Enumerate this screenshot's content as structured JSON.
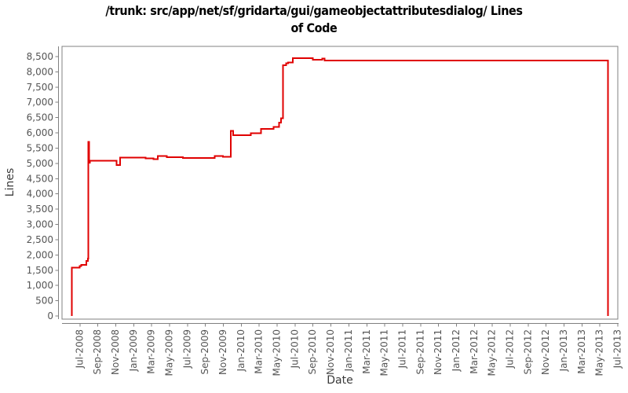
{
  "title": {
    "line1": "/trunk: src/app/net/sf/gridarta/gui/gameobjectattributesdialog/ Lines",
    "line2": "of Code"
  },
  "colors": {
    "background": "#ffffff",
    "line": "#e00000",
    "axis": "#808080",
    "tick_label": "#555555",
    "axis_title": "#3a3a3a",
    "title": "#000000"
  },
  "chart_data": {
    "type": "line",
    "step_interpolation": "step-after",
    "title": "/trunk: src/app/net/sf/gridarta/gui/gameobjectattributesdialog/ Lines of Code",
    "xlabel": "Date",
    "ylabel": "Lines",
    "grid": false,
    "legend": false,
    "x_domain_decimal_years": [
      2008.3333,
      2013.5
    ],
    "ylim": [
      0,
      8500
    ],
    "y_ticks": {
      "values": [
        0,
        500,
        1000,
        1500,
        2000,
        2500,
        3000,
        3500,
        4000,
        4500,
        5000,
        5500,
        6000,
        6500,
        7000,
        7500,
        8000,
        8500
      ],
      "labels": [
        "0",
        "500",
        "1,000",
        "1,500",
        "2,000",
        "2,500",
        "3,000",
        "3,500",
        "4,000",
        "4,500",
        "5,000",
        "5,500",
        "6,000",
        "6,500",
        "7,000",
        "7,500",
        "8,000",
        "8,500"
      ]
    },
    "x_ticks": {
      "first_decimal_year": 2008.5,
      "interval_years": 0.1666667,
      "labels": [
        "Jul-2008",
        "Sep-2008",
        "Nov-2008",
        "Jan-2009",
        "Mar-2009",
        "May-2009",
        "Jul-2009",
        "Sep-2009",
        "Nov-2009",
        "Jan-2010",
        "Mar-2010",
        "May-2010",
        "Jul-2010",
        "Sep-2010",
        "Nov-2010",
        "Jan-2011",
        "Mar-2011",
        "May-2011",
        "Jul-2011",
        "Sep-2011",
        "Nov-2011",
        "Jan-2012",
        "Mar-2012",
        "May-2012",
        "Jul-2012",
        "Sep-2012",
        "Nov-2012",
        "Jan-2013",
        "Mar-2013",
        "May-2013",
        "Jul-2013"
      ],
      "label_rotation_degrees": -90
    },
    "series": [
      {
        "name": "Lines of Code",
        "color": "#e00000",
        "points": [
          [
            "2008-06-03",
            0
          ],
          [
            "2008-06-03",
            1590
          ],
          [
            "2008-06-30",
            1630
          ],
          [
            "2008-07-05",
            1680
          ],
          [
            "2008-07-22",
            1800
          ],
          [
            "2008-07-27",
            1880
          ],
          [
            "2008-07-29",
            5700
          ],
          [
            "2008-08-01",
            5020
          ],
          [
            "2008-08-03",
            5085
          ],
          [
            "2008-11-02",
            4950
          ],
          [
            "2008-11-14",
            5190
          ],
          [
            "2009-02-10",
            5160
          ],
          [
            "2009-03-06",
            5135
          ],
          [
            "2009-03-21",
            5240
          ],
          [
            "2009-04-21",
            5205
          ],
          [
            "2009-06-15",
            5175
          ],
          [
            "2009-10-01",
            5245
          ],
          [
            "2009-10-29",
            5210
          ],
          [
            "2009-11-25",
            6070
          ],
          [
            "2009-12-03",
            5925
          ],
          [
            "2010-02-02",
            5985
          ],
          [
            "2010-03-06",
            6130
          ],
          [
            "2010-04-18",
            6200
          ],
          [
            "2010-05-06",
            6330
          ],
          [
            "2010-05-13",
            6475
          ],
          [
            "2010-05-20",
            8220
          ],
          [
            "2010-05-30",
            8280
          ],
          [
            "2010-06-07",
            8310
          ],
          [
            "2010-06-23",
            8450
          ],
          [
            "2010-08-30",
            8400
          ],
          [
            "2010-10-01",
            8435
          ],
          [
            "2010-10-09",
            8372
          ],
          [
            "2013-05-28",
            8372
          ],
          [
            "2013-05-28",
            0
          ]
        ]
      }
    ]
  }
}
